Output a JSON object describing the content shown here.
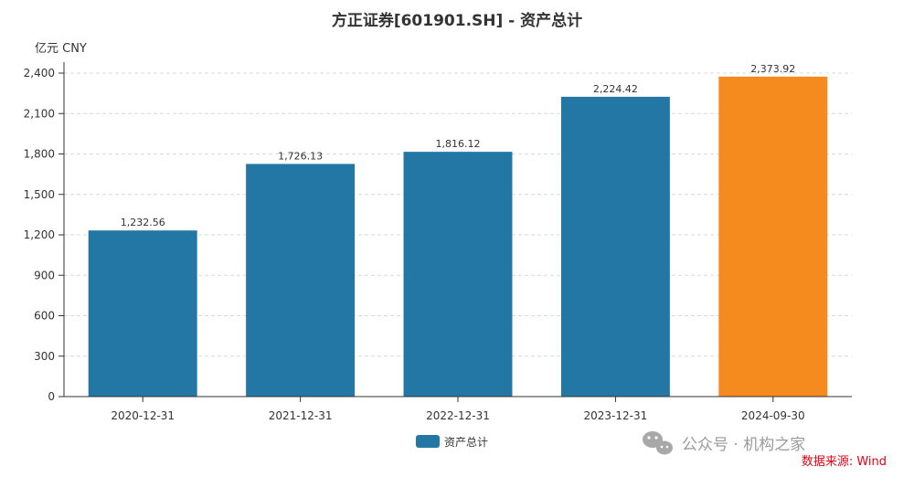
{
  "chart_data": {
    "type": "bar",
    "title": "方正证券[601901.SH] - 资产总计",
    "unit_label": "亿元  CNY",
    "categories": [
      "2020-12-31",
      "2021-12-31",
      "2022-12-31",
      "2023-12-31",
      "2024-09-30"
    ],
    "series": [
      {
        "name": "资产总计",
        "values": [
          1232.56,
          1726.13,
          1816.12,
          2224.42,
          2373.92
        ],
        "data_labels": [
          "1,232.56",
          "1,726.13",
          "1,816.12",
          "2,224.42",
          "2,373.92"
        ]
      }
    ],
    "yticks": [
      0,
      300,
      600,
      900,
      1200,
      1500,
      1800,
      2100,
      2400
    ],
    "ytick_labels": [
      "0",
      "300",
      "600",
      "900",
      "1,200",
      "1,500",
      "1,800",
      "2,100",
      "2,400"
    ],
    "ylim": [
      0,
      2400
    ],
    "grid": true,
    "legend": "bottom-center",
    "colors": {
      "bar": "#2377a4",
      "highlight": "#f58a1f",
      "grid": "#d9d9d9",
      "axis": "#333333"
    },
    "highlight_index": 4
  },
  "watermark": "公众号 · 机构之家",
  "source": "数据来源: Wind"
}
